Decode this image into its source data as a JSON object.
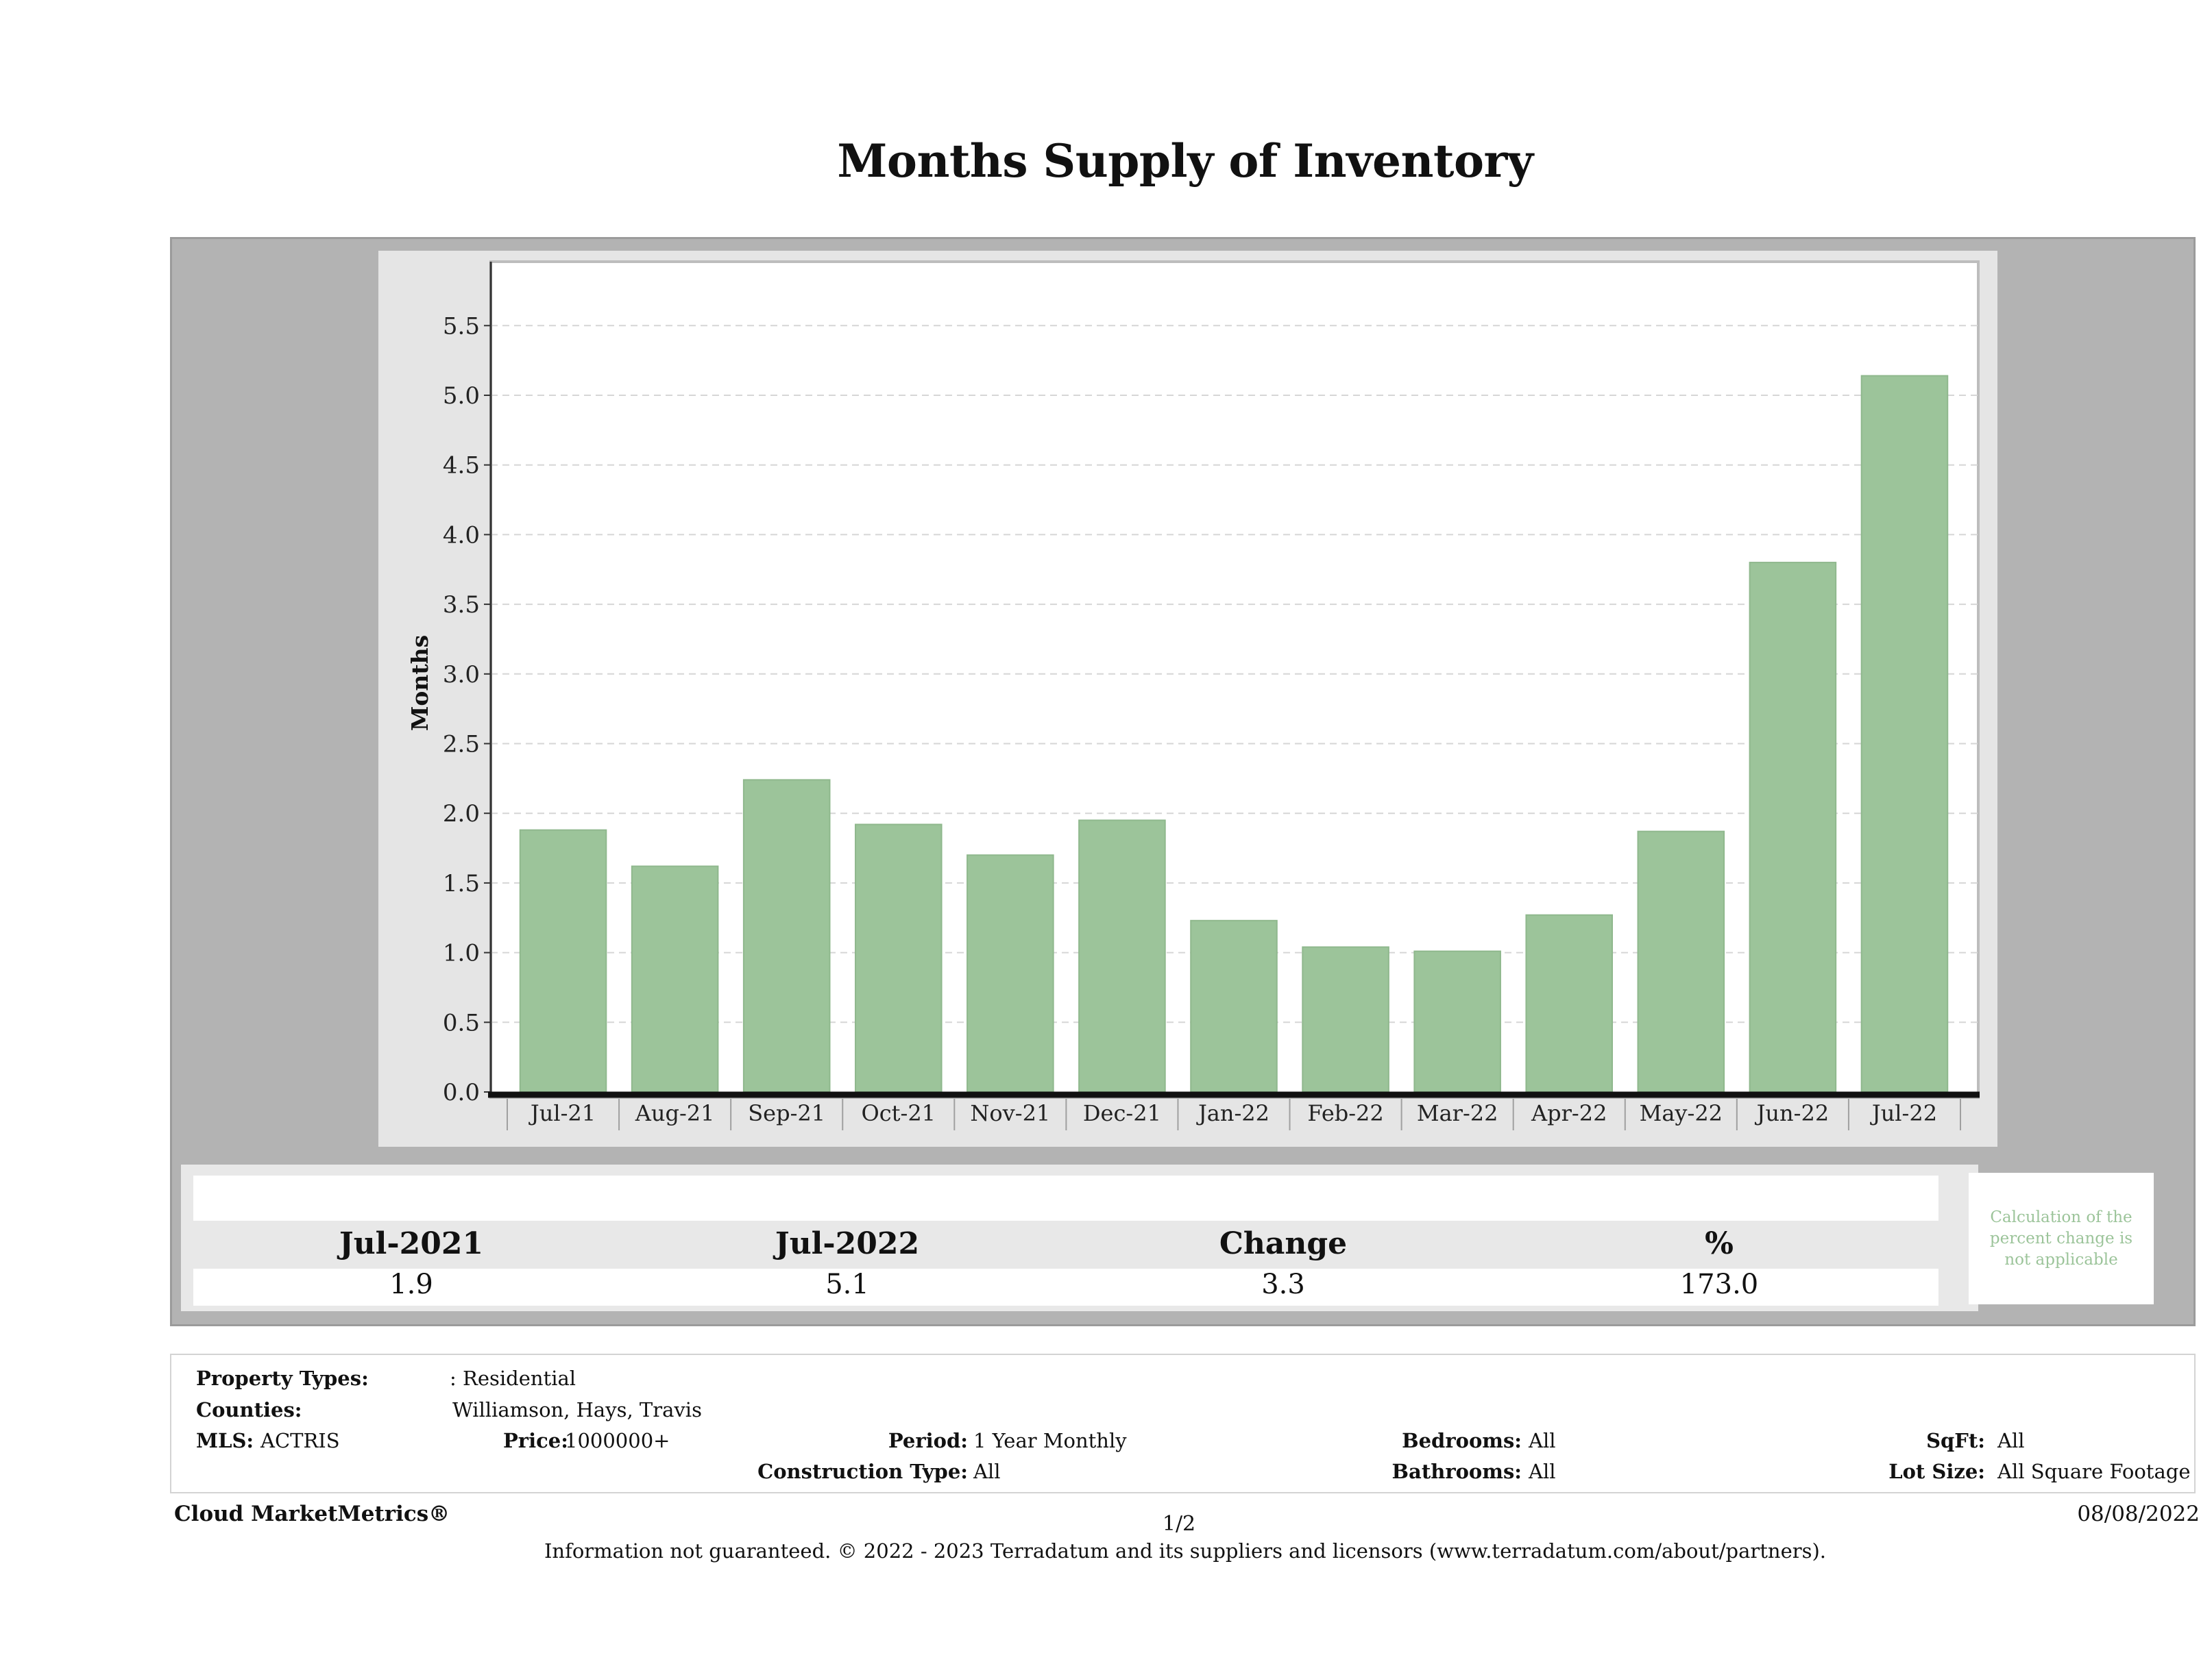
{
  "title": "Months Supply of Inventory",
  "chart_data": {
    "type": "bar",
    "categories": [
      "Jul-21",
      "Aug-21",
      "Sep-21",
      "Oct-21",
      "Nov-21",
      "Dec-21",
      "Jan-22",
      "Feb-22",
      "Mar-22",
      "Apr-22",
      "May-22",
      "Jun-22",
      "Jul-22"
    ],
    "values": [
      1.88,
      1.62,
      2.24,
      1.92,
      1.7,
      1.95,
      1.23,
      1.04,
      1.01,
      1.27,
      1.87,
      3.8,
      5.14
    ],
    "ylabel": "Months",
    "xlabel": "",
    "ylim": [
      0,
      5.9
    ],
    "yticks": [
      "0.0",
      "0.5",
      "1.0",
      "1.5",
      "2.0",
      "2.5",
      "3.0",
      "3.5",
      "4.0",
      "4.5",
      "5.0",
      "5.5"
    ],
    "grid": true,
    "bar_color": "#9cc49a"
  },
  "summary": {
    "headers": [
      "Jul-2021",
      "Jul-2022",
      "Change",
      "%"
    ],
    "values": [
      "1.9",
      "5.1",
      "3.3",
      "173.0"
    ],
    "note": "Calculation of the percent change is not applicable"
  },
  "info": {
    "property_types_label": "Property Types:",
    "property_types_value": ": Residential",
    "counties_label": "Counties:",
    "counties_value": "Williamson, Hays, Travis",
    "mls_label": "MLS:",
    "mls_value": "ACTRIS",
    "price_label": "Price:",
    "price_value": "1000000+",
    "period_label": "Period:",
    "period_value": "1 Year Monthly",
    "construction_label": "Construction Type:",
    "construction_value": "All",
    "bedrooms_label": "Bedrooms:",
    "bedrooms_value": "All",
    "bathrooms_label": "Bathrooms:",
    "bathrooms_value": "All",
    "sqft_label": "SqFt:",
    "sqft_value": "All",
    "lotsize_label": "Lot Size:",
    "lotsize_value": "All Square Footage"
  },
  "footer": {
    "brand": "Cloud MarketMetrics®",
    "page": "1/2",
    "date": "08/08/2022",
    "disclaimer": "Information not guaranteed. © 2022 - 2023 Terradatum and its suppliers and licensors (www.terradatum.com/about/partners)."
  }
}
